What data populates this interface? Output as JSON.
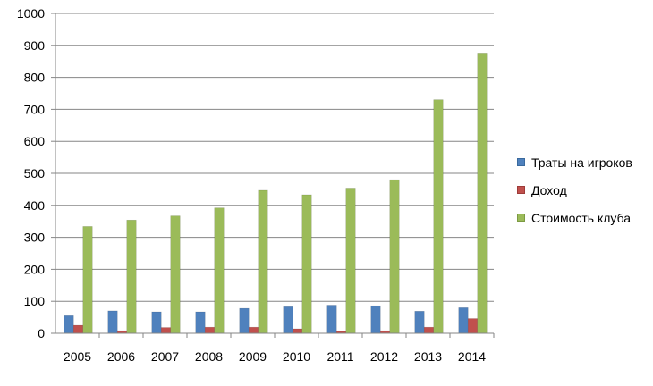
{
  "chart_data": {
    "type": "bar",
    "title": "",
    "xlabel": "",
    "ylabel": "",
    "categories": [
      "2005",
      "2006",
      "2007",
      "2008",
      "2009",
      "2010",
      "2011",
      "2012",
      "2013",
      "2014"
    ],
    "series": [
      {
        "name": "Траты на игроков",
        "color": "#4f81bd",
        "values": [
          55,
          70,
          67,
          67,
          78,
          83,
          88,
          86,
          69,
          80
        ]
      },
      {
        "name": "Доход",
        "color": "#c0504d",
        "values": [
          25,
          8,
          18,
          19,
          19,
          14,
          6,
          8,
          19,
          46
        ]
      },
      {
        "name": "Стоимость клуба",
        "color": "#9bbb59",
        "values": [
          334,
          354,
          367,
          392,
          447,
          433,
          454,
          480,
          730,
          876
        ]
      }
    ],
    "ylim": [
      0,
      1000
    ],
    "yticks": [
      0,
      100,
      200,
      300,
      400,
      500,
      600,
      700,
      800,
      900,
      1000
    ],
    "grid": true,
    "legend_position": "right"
  }
}
